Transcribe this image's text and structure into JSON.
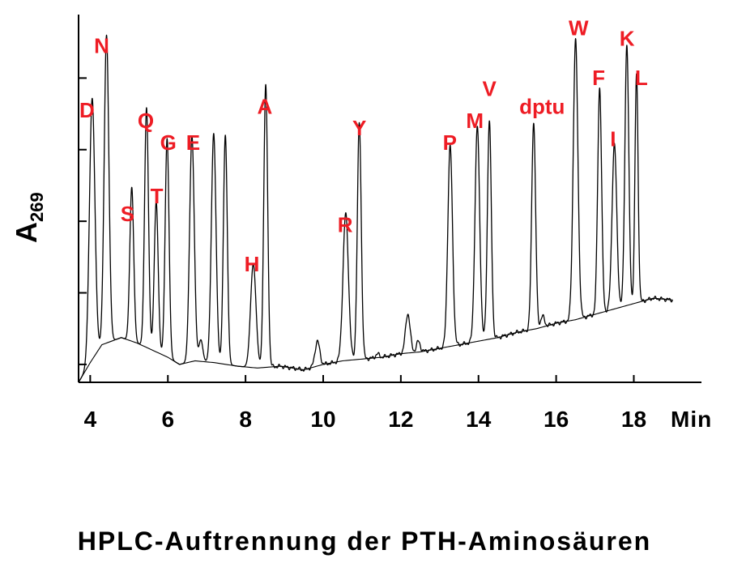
{
  "chart_data": {
    "type": "line",
    "title": "HPLC-Auftrennung der PTH-Aminosäuren",
    "xlabel": "Min",
    "ylabel": "A",
    "ylabel_subscript": "269",
    "xlim": [
      3.7,
      19.2
    ],
    "ylim": [
      0,
      105
    ],
    "x_ticks": [
      4,
      6,
      8,
      10,
      12,
      14,
      16,
      18
    ],
    "y_ticks": [
      5,
      25,
      45,
      65,
      85
    ],
    "y_tick_labels_shown": false,
    "grid": false,
    "legend": "none",
    "line_color": "#000000",
    "label_color": "#ee1c24",
    "baseline": {
      "x": [
        3.7,
        4.0,
        4.3,
        4.8,
        5.2,
        5.6,
        6.0,
        6.3,
        6.7,
        7.2,
        7.8,
        8.3,
        8.9,
        9.5,
        10.0,
        10.5,
        11.0,
        11.5,
        12.0,
        12.5,
        13.0,
        13.5,
        14.0,
        14.5,
        15.0,
        15.5,
        16.0,
        16.5,
        17.0,
        17.5,
        18.0,
        18.5,
        19.0
      ],
      "y": [
        0,
        5.5,
        10.5,
        12.5,
        11,
        9,
        7,
        5,
        6,
        5.5,
        4.5,
        4,
        4.5,
        3.5,
        5,
        6,
        6.5,
        7,
        8,
        8.5,
        9.5,
        10.5,
        11.5,
        12.5,
        14,
        15,
        16.5,
        17.5,
        19,
        20.5,
        22,
        23.5,
        23
      ]
    },
    "peaks": [
      {
        "label": "D",
        "x": 4.05,
        "height": 73,
        "width": 0.07
      },
      {
        "label": "N",
        "x": 4.42,
        "height": 86,
        "width": 0.06
      },
      {
        "label": "S",
        "x": 5.07,
        "height": 43,
        "width": 0.05
      },
      {
        "label": "Q",
        "x": 5.45,
        "height": 67,
        "width": 0.05
      },
      {
        "label": "T",
        "x": 5.7,
        "height": 42,
        "width": 0.05
      },
      {
        "label": "G",
        "x": 5.98,
        "height": 61,
        "width": 0.05
      },
      {
        "label": "E",
        "x": 6.62,
        "height": 63,
        "width": 0.06
      },
      {
        "label": "",
        "x": 6.85,
        "height": 6,
        "width": 0.05
      },
      {
        "label": "",
        "x": 7.18,
        "height": 64,
        "width": 0.06
      },
      {
        "label": "",
        "x": 7.48,
        "height": 64,
        "width": 0.05
      },
      {
        "label": "H",
        "x": 8.2,
        "height": 29,
        "width": 0.07
      },
      {
        "label": "A",
        "x": 8.52,
        "height": 79,
        "width": 0.05
      },
      {
        "label": "",
        "x": 9.85,
        "height": 7,
        "width": 0.06
      },
      {
        "label": "R",
        "x": 10.58,
        "height": 41,
        "width": 0.07
      },
      {
        "label": "Y",
        "x": 10.93,
        "height": 66,
        "width": 0.05
      },
      {
        "label": "",
        "x": 11.4,
        "height": 1,
        "width": 0.05
      },
      {
        "label": "",
        "x": 12.18,
        "height": 11,
        "width": 0.06
      },
      {
        "label": "",
        "x": 12.45,
        "height": 3,
        "width": 0.05
      },
      {
        "label": "P",
        "x": 13.27,
        "height": 56,
        "width": 0.06
      },
      {
        "label": "M",
        "x": 13.97,
        "height": 60,
        "width": 0.06
      },
      {
        "label": "V",
        "x": 14.28,
        "height": 61,
        "width": 0.05
      },
      {
        "label": "dptu",
        "x": 15.42,
        "height": 58,
        "width": 0.05
      },
      {
        "label": "",
        "x": 15.65,
        "height": 3,
        "width": 0.05
      },
      {
        "label": "W",
        "x": 16.5,
        "height": 78,
        "width": 0.06
      },
      {
        "label": "F",
        "x": 17.12,
        "height": 63,
        "width": 0.05
      },
      {
        "label": "I",
        "x": 17.5,
        "height": 46,
        "width": 0.06
      },
      {
        "label": "K",
        "x": 17.82,
        "height": 73,
        "width": 0.05
      },
      {
        "label": "L",
        "x": 18.07,
        "height": 64,
        "width": 0.04
      }
    ],
    "peak_labels": [
      {
        "text": "D",
        "x": 3.72,
        "y": 74
      },
      {
        "text": "N",
        "x": 4.1,
        "y": 92
      },
      {
        "text": "S",
        "x": 4.78,
        "y": 45
      },
      {
        "text": "Q",
        "x": 5.22,
        "y": 71
      },
      {
        "text": "T",
        "x": 5.55,
        "y": 50
      },
      {
        "text": "G",
        "x": 5.8,
        "y": 65
      },
      {
        "text": "E",
        "x": 6.47,
        "y": 65
      },
      {
        "text": "H",
        "x": 7.97,
        "y": 31
      },
      {
        "text": "A",
        "x": 8.3,
        "y": 75
      },
      {
        "text": "R",
        "x": 10.37,
        "y": 42
      },
      {
        "text": "Y",
        "x": 10.75,
        "y": 69
      },
      {
        "text": "P",
        "x": 13.08,
        "y": 65
      },
      {
        "text": "M",
        "x": 13.68,
        "y": 71
      },
      {
        "text": "V",
        "x": 14.1,
        "y": 80
      },
      {
        "text": "dptu",
        "x": 15.05,
        "y": 75
      },
      {
        "text": "W",
        "x": 16.32,
        "y": 97
      },
      {
        "text": "F",
        "x": 16.93,
        "y": 83
      },
      {
        "text": "I",
        "x": 17.39,
        "y": 66
      },
      {
        "text": "K",
        "x": 17.63,
        "y": 94
      },
      {
        "text": "L",
        "x": 18.03,
        "y": 83
      }
    ]
  }
}
